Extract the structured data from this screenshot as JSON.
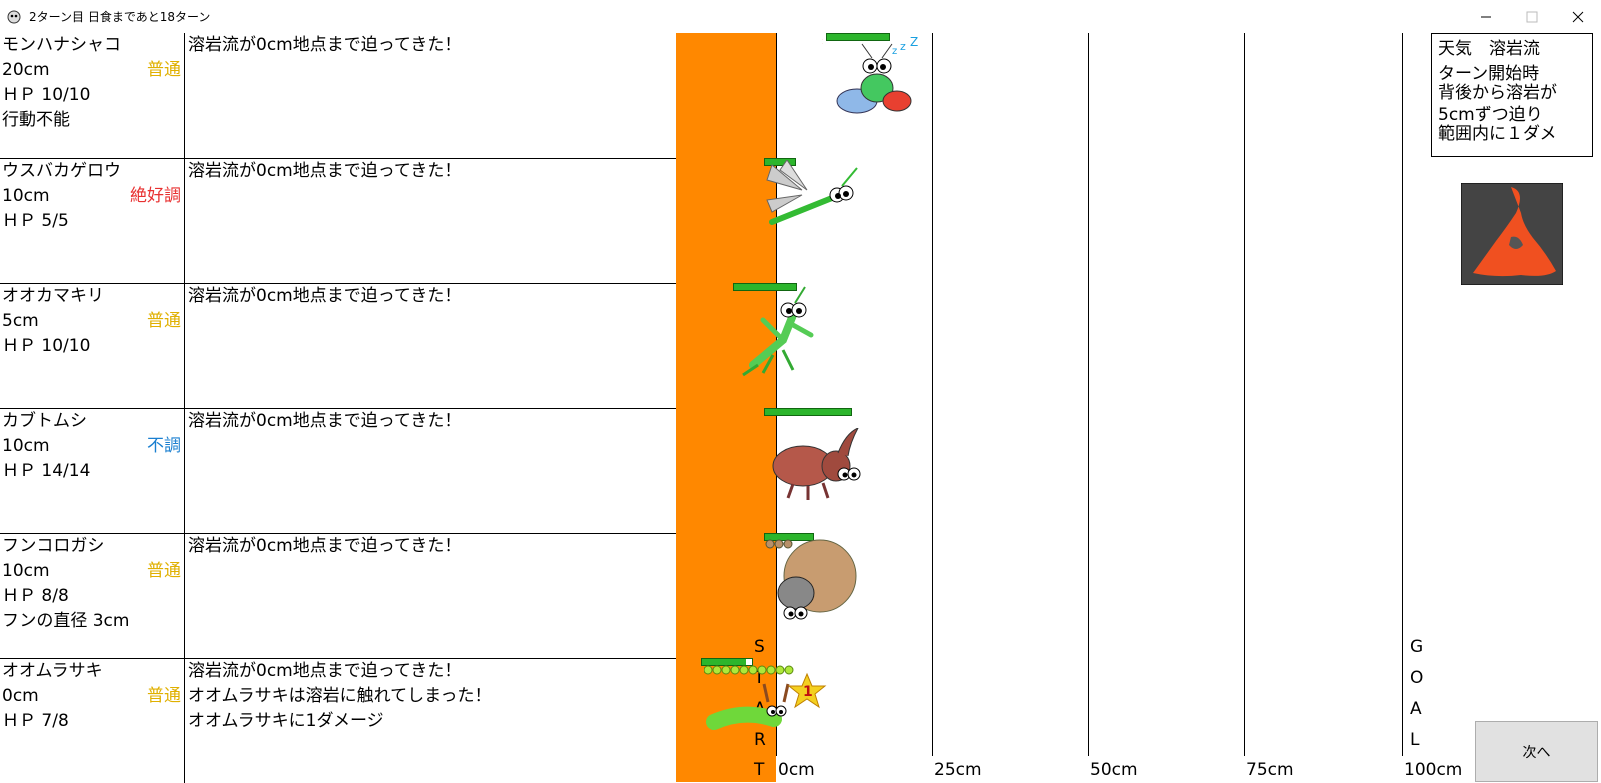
{
  "window": {
    "title": "2ターン目 日食まであと18ターン",
    "minimize_icon": "minimize-icon",
    "maximize_icon": "maximize-icon",
    "close_icon": "close-icon"
  },
  "colors": {
    "lava": "#ff8800",
    "cond_normal": "#e0b000",
    "cond_great": "#e83030",
    "cond_bad": "#1a7fd0",
    "hp_bar": "#2cb52c"
  },
  "insects": [
    {
      "name": "モンハナシャコ",
      "position": "20cm",
      "condition": "普通",
      "condition_color": "#e0b000",
      "hp": "ＨＰ 10/10",
      "extra": "行動不能",
      "messages": [
        "溶岩流が0cm地点まで迫ってきた！"
      ],
      "icon": "mantis-shrimp-icon",
      "hp_fraction": 1.0
    },
    {
      "name": "ウスバカゲロウ",
      "position": "10cm",
      "condition": "絶好調",
      "condition_color": "#e83030",
      "hp": "ＨＰ 5/5",
      "extra": "",
      "messages": [
        "溶岩流が0cm地点まで迫ってきた！"
      ],
      "icon": "antlion-fly-icon",
      "hp_fraction": 1.0
    },
    {
      "name": "オオカマキリ",
      "position": "5cm",
      "condition": "普通",
      "condition_color": "#e0b000",
      "hp": "ＨＰ 10/10",
      "extra": "",
      "messages": [
        "溶岩流が0cm地点まで迫ってきた！"
      ],
      "icon": "mantis-icon",
      "hp_fraction": 1.0
    },
    {
      "name": "カブトムシ",
      "position": "10cm",
      "condition": "不調",
      "condition_color": "#1a7fd0",
      "hp": "ＨＰ 14/14",
      "extra": "",
      "messages": [
        "溶岩流が0cm地点まで迫ってきた！"
      ],
      "icon": "beetle-icon",
      "hp_fraction": 1.0
    },
    {
      "name": "フンコロガシ",
      "position": "10cm",
      "condition": "普通",
      "condition_color": "#e0b000",
      "hp": "ＨＰ 8/8",
      "extra": "フンの直径 3cm",
      "messages": [
        "溶岩流が0cm地点まで迫ってきた！"
      ],
      "icon": "dung-beetle-icon",
      "hp_fraction": 1.0
    },
    {
      "name": "オオムラサキ",
      "position": "0cm",
      "condition": "普通",
      "condition_color": "#e0b000",
      "hp": "ＨＰ 7/8",
      "extra": "",
      "messages": [
        "溶岩流が0cm地点まで迫ってきた！",
        "オオムラサキは溶岩に触れてしまった！",
        "オオムラサキに1ダメージ"
      ],
      "icon": "caterpillar-icon",
      "hp_fraction": 0.875,
      "badge": "1"
    }
  ],
  "track": {
    "ticks": [
      "0cm",
      "25cm",
      "50cm",
      "75cm",
      "100cm"
    ],
    "start_letters": [
      "S",
      "T",
      "A",
      "R",
      "T"
    ],
    "goal_letters": [
      "G",
      "O",
      "A",
      "L"
    ]
  },
  "weather": {
    "line1": "天気　溶岩流",
    "line2": "ターン開始時",
    "line3": "背後から溶岩が",
    "line4": "5cmずつ迫り",
    "line5": "範囲内に１ダメ",
    "icon": "lava-weather-icon"
  },
  "next_button": {
    "label": "次へ"
  }
}
